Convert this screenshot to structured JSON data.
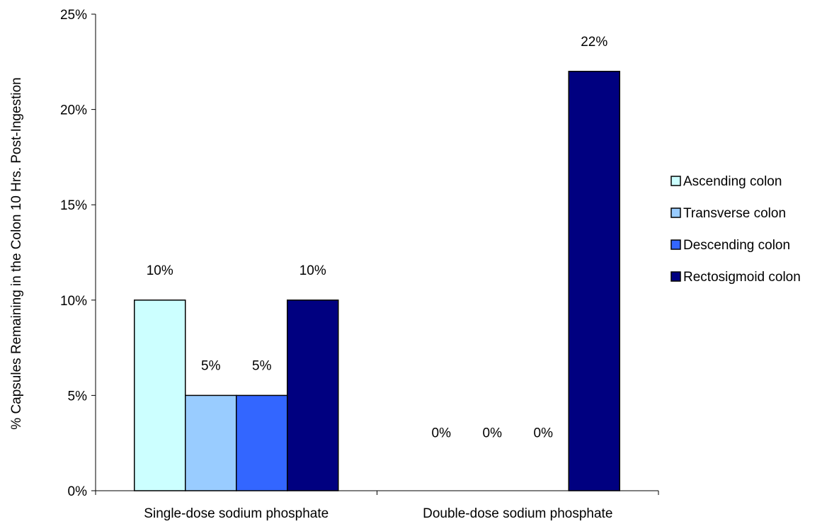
{
  "chart_data": {
    "type": "bar",
    "title": "",
    "xlabel": "",
    "ylabel": "% Capsules Remaining in the Colon 10 Hrs. Post-Ingestion",
    "ylim": [
      0,
      25
    ],
    "yticks": [
      "0%",
      "5%",
      "10%",
      "15%",
      "20%",
      "25%"
    ],
    "categories": [
      "Single-dose sodium phosphate",
      "Double-dose sodium phosphate"
    ],
    "series": [
      {
        "name": "Ascending colon",
        "color": "#CCFFFF",
        "values": [
          10,
          0
        ],
        "labels": [
          "10%",
          "0%"
        ]
      },
      {
        "name": "Transverse colon",
        "color": "#99CCFF",
        "values": [
          5,
          0
        ],
        "labels": [
          "5%",
          "0%"
        ]
      },
      {
        "name": "Descending colon",
        "color": "#3366FF",
        "values": [
          5,
          0
        ],
        "labels": [
          "5%",
          "0%"
        ]
      },
      {
        "name": "Rectosigmoid colon",
        "color": "#000080",
        "values": [
          10,
          22
        ],
        "labels": [
          "10%",
          "22%"
        ]
      }
    ],
    "grid": false,
    "legend_position": "right"
  }
}
